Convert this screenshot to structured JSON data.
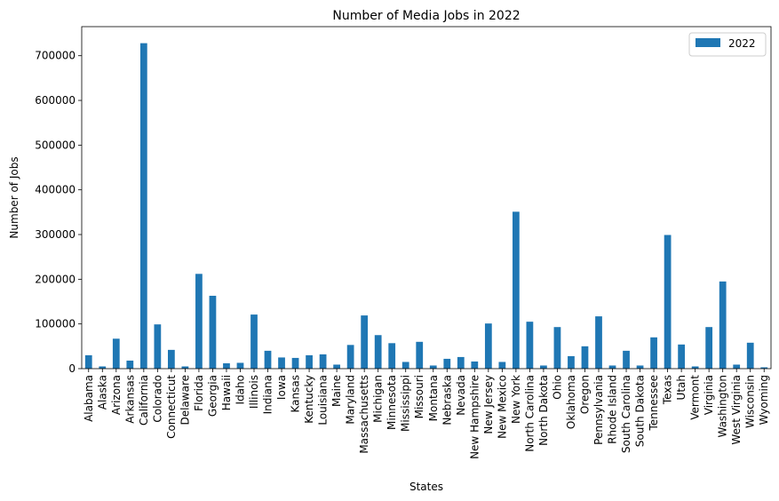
{
  "chart_data": {
    "type": "bar",
    "title": "Number of Media Jobs in 2022",
    "xlabel": "States",
    "ylabel": "Number of Jobs",
    "ylim": [
      0,
      765000
    ],
    "yticks": [
      0,
      100000,
      200000,
      300000,
      400000,
      500000,
      600000,
      700000
    ],
    "grid": false,
    "legend_position": "top-right",
    "color": "#1f77b4",
    "categories": [
      "Alabama",
      "Alaska",
      "Arizona",
      "Arkansas",
      "California",
      "Colorado",
      "Connecticut",
      "Delaware",
      "Florida",
      "Georgia",
      "Hawaii",
      "Idaho",
      "Illinois",
      "Indiana",
      "Iowa",
      "Kansas",
      "Kentucky",
      "Louisiana",
      "Maine",
      "Maryland",
      "Massachusetts",
      "Michigan",
      "Minnesota",
      "Mississippi",
      "Missouri",
      "Montana",
      "Nebraska",
      "Nevada",
      "New Hampshire",
      "New Jersey",
      "New Mexico",
      "New York",
      "North Carolina",
      "North Dakota",
      "Ohio",
      "Oklahoma",
      "Oregon",
      "Pennsylvania",
      "Rhode Island",
      "South Carolina",
      "South Dakota",
      "Tennessee",
      "Texas",
      "Utah",
      "Vermont",
      "Virginia",
      "Washington",
      "West Virginia",
      "Wisconsin",
      "Wyoming"
    ],
    "series": [
      {
        "name": "2022",
        "values": [
          30000,
          5000,
          67000,
          18000,
          728000,
          99000,
          42000,
          5000,
          212000,
          163000,
          12000,
          13000,
          121000,
          40000,
          25000,
          24000,
          30000,
          32000,
          9000,
          53000,
          119000,
          75000,
          57000,
          15000,
          60000,
          7000,
          22000,
          26000,
          16000,
          101000,
          15000,
          351000,
          105000,
          7000,
          93000,
          28000,
          50000,
          117000,
          7000,
          40000,
          7000,
          70000,
          299000,
          54000,
          5000,
          93000,
          195000,
          9000,
          58000,
          3000
        ]
      }
    ]
  }
}
